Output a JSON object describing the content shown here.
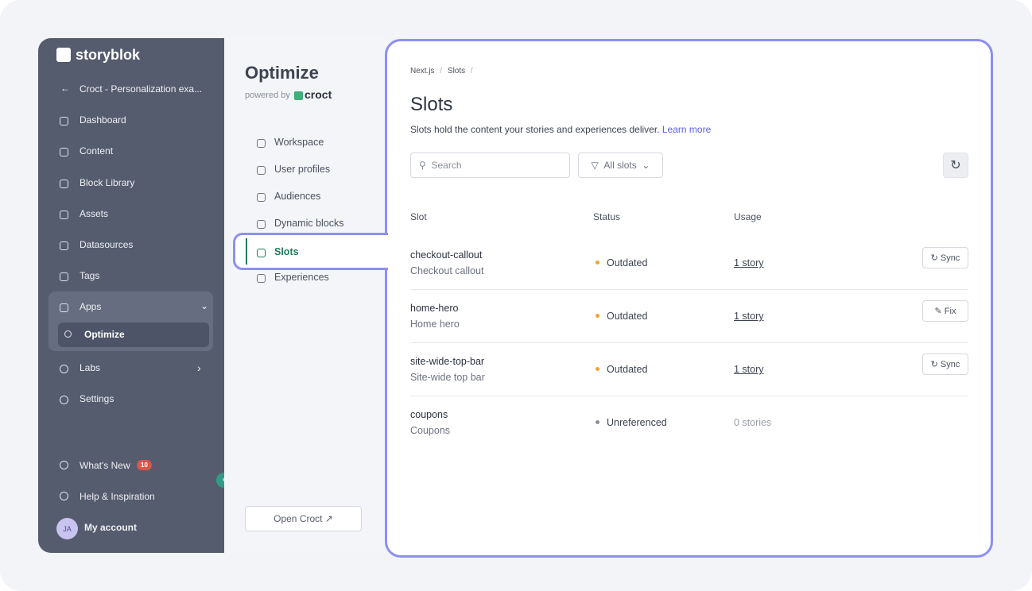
{
  "sidebar": {
    "brand": "storyblok",
    "space": "Croct - Personalization exa...",
    "items": [
      "Dashboard",
      "Content",
      "Block Library",
      "Assets",
      "Datasources",
      "Tags",
      "Apps"
    ],
    "sub_item": "Optimize",
    "items_after": [
      "Labs",
      "Settings"
    ],
    "whats_new": "What's New",
    "badge": 10,
    "help": "Help & Inspiration",
    "avatar": "JA",
    "account": "My account"
  },
  "app": {
    "title": "Optimize",
    "powered_by": "powered by",
    "powered_brand": "croct",
    "nav": [
      "Workspace",
      "User profiles",
      "Audiences",
      "Dynamic blocks",
      "Slots",
      "Experiences"
    ],
    "active_index": 4,
    "open_button": "Open Croct"
  },
  "main": {
    "breadcrumb": [
      "Next.js",
      "Slots"
    ],
    "separator": "/",
    "title": "Slots",
    "description": "Slots hold the content your stories and experiences deliver.",
    "learn_more": "Learn more",
    "search_placeholder": "Search",
    "filter": "All slots",
    "columns": [
      "Slot",
      "Status",
      "Usage"
    ],
    "rows": [
      {
        "id": "checkout-callout",
        "name": "Checkout callout",
        "status": "Outdated",
        "status_color": "#f0a33a",
        "usage": "1 story",
        "usage_link": true,
        "action": "Sync"
      },
      {
        "id": "home-hero",
        "name": "Home hero",
        "status": "Outdated",
        "status_color": "#f0a33a",
        "usage": "1 story",
        "usage_link": true,
        "action": "Fix"
      },
      {
        "id": "site-wide-top-bar",
        "name": "Site-wide top bar",
        "status": "Outdated",
        "status_color": "#f0a33a",
        "usage": "1 story",
        "usage_link": true,
        "action": "Sync"
      },
      {
        "id": "coupons",
        "name": "Coupons",
        "status": "Unreferenced",
        "status_color": "#8a8f99",
        "usage": "0 stories",
        "usage_link": false
      }
    ]
  }
}
